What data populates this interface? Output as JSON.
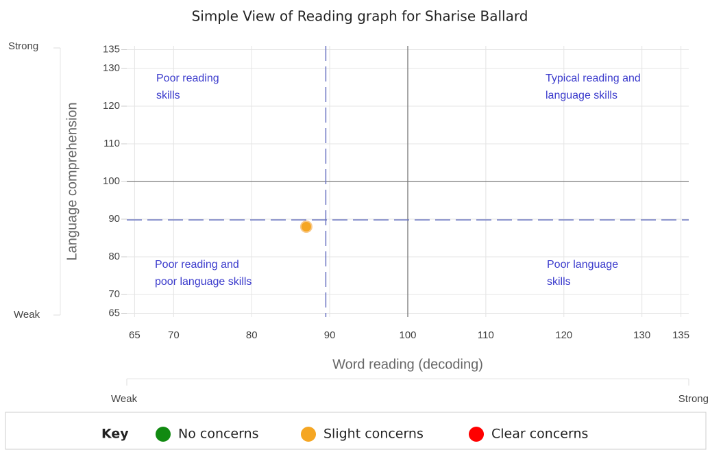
{
  "chart_data": {
    "type": "scatter",
    "title": "Simple View of Reading graph for Sharise Ballard",
    "xlabel": "Word reading (decoding)",
    "ylabel": "Language comprehension",
    "xlim": [
      64,
      136
    ],
    "ylim": [
      64,
      136
    ],
    "xticks": [
      65,
      70,
      80,
      90,
      100,
      110,
      120,
      130,
      135
    ],
    "yticks": [
      65,
      70,
      80,
      90,
      100,
      110,
      120,
      130,
      135
    ],
    "grid": true,
    "x": [
      87
    ],
    "y": [
      88
    ],
    "color": "#f5a623",
    "reference_lines": {
      "x": 100,
      "y": 100
    },
    "thresholds": {
      "x": 89.5,
      "y": 89.8
    },
    "quadrant_labels": [
      [
        "Poor reading",
        "skills"
      ],
      [
        "Typical reading and",
        "language skills"
      ],
      [
        "Poor reading and",
        "poor language skills"
      ],
      [
        "Poor language",
        "skills"
      ]
    ],
    "y_scale_labels": [
      "Weak",
      "Strong"
    ],
    "x_scale_labels": [
      "Weak",
      "Strong"
    ],
    "key": {
      "title": "Key",
      "items": [
        {
          "label": "No concerns",
          "color": "#118a11"
        },
        {
          "label": "Slight concerns",
          "color": "#f5a623"
        },
        {
          "label": "Clear concerns",
          "color": "#ff0000"
        }
      ]
    }
  }
}
